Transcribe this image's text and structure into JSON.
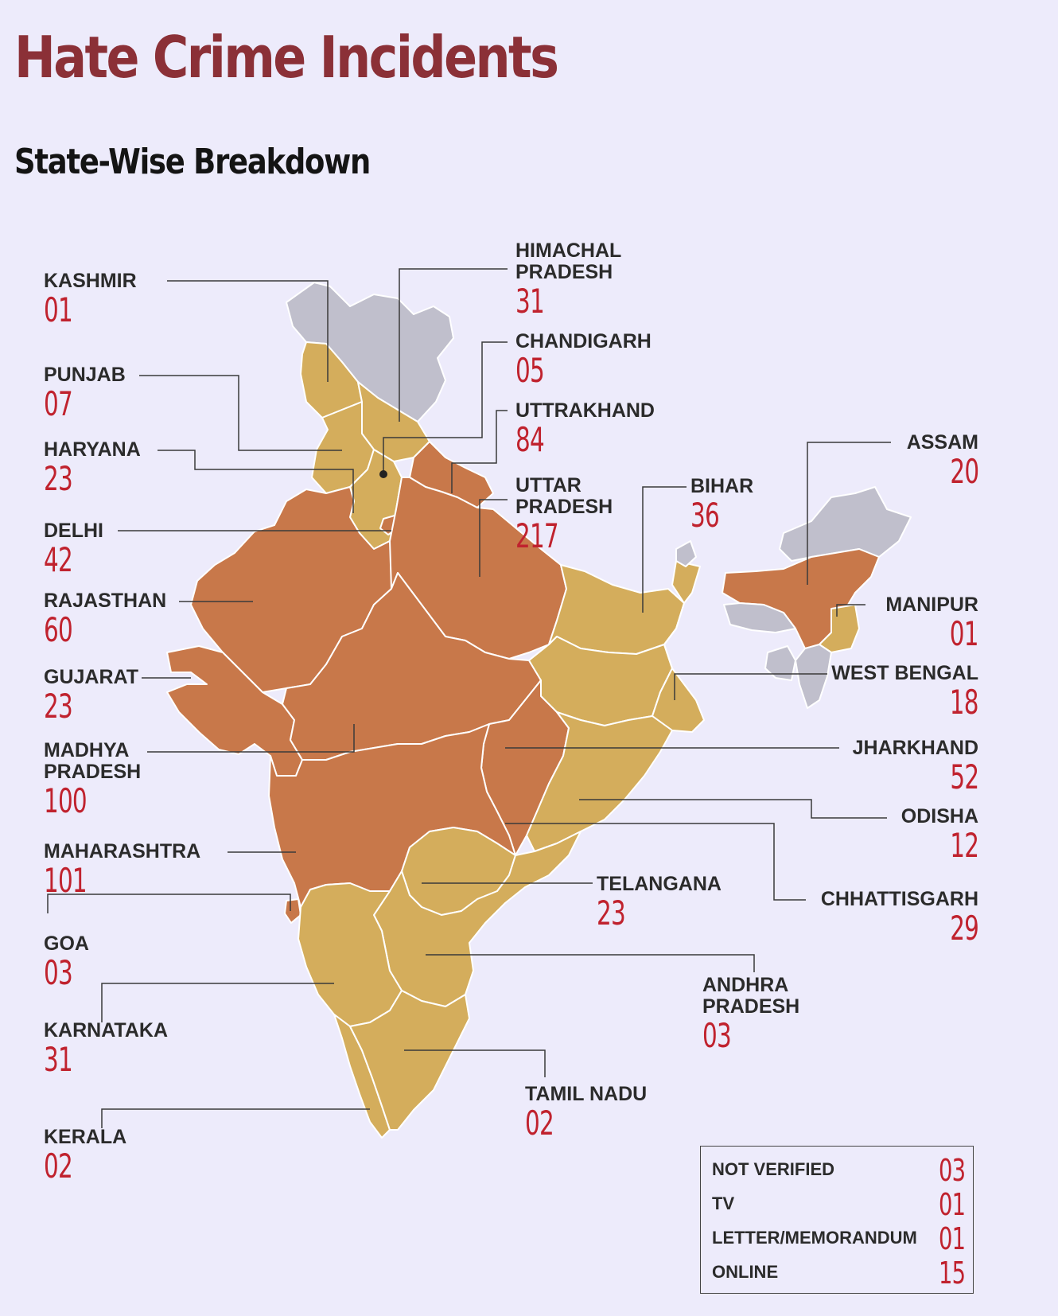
{
  "header": {
    "title": "Hate Crime Incidents",
    "subtitle": "State-Wise Breakdown"
  },
  "colors": {
    "background": "#edebfb",
    "high": "#c8784a",
    "low": "#d4ad5c",
    "none": "#c0bfcc",
    "value": "#c0222e",
    "title": "#8b3037"
  },
  "states": {
    "kashmir": {
      "name": "KASHMIR",
      "value": "01"
    },
    "punjab": {
      "name": "PUNJAB",
      "value": "07"
    },
    "haryana": {
      "name": "HARYANA",
      "value": "23"
    },
    "delhi": {
      "name": "DELHI",
      "value": "42"
    },
    "rajasthan": {
      "name": "RAJASTHAN",
      "value": "60"
    },
    "gujarat": {
      "name": "GUJARAT",
      "value": "23"
    },
    "madhya_pradesh": {
      "name": "MADHYA\nPRADESH",
      "value": "100"
    },
    "maharashtra": {
      "name": "MAHARASHTRA",
      "value": "101"
    },
    "goa": {
      "name": "GOA",
      "value": "03"
    },
    "karnataka": {
      "name": "KARNATAKA",
      "value": "31"
    },
    "kerala": {
      "name": "KERALA",
      "value": "02"
    },
    "himachal_pradesh": {
      "name": "HIMACHAL\nPRADESH",
      "value": "31"
    },
    "chandigarh": {
      "name": "CHANDIGARH",
      "value": "05"
    },
    "uttrakhand": {
      "name": "UTTRAKHAND",
      "value": "84"
    },
    "uttar_pradesh": {
      "name": "UTTAR\nPRADESH",
      "value": "217"
    },
    "bihar": {
      "name": "BIHAR",
      "value": "36"
    },
    "assam": {
      "name": "ASSAM",
      "value": "20"
    },
    "manipur": {
      "name": "MANIPUR",
      "value": "01"
    },
    "west_bengal": {
      "name": "WEST BENGAL",
      "value": "18"
    },
    "jharkhand": {
      "name": "JHARKHAND",
      "value": "52"
    },
    "odisha": {
      "name": "ODISHA",
      "value": "12"
    },
    "chhattisgarh": {
      "name": "CHHATTISGARH",
      "value": "29"
    },
    "telangana": {
      "name": "TELANGANA",
      "value": "23"
    },
    "andhra_pradesh": {
      "name": "ANDHRA\nPRADESH",
      "value": "03"
    },
    "tamil_nadu": {
      "name": "TAMIL NADU",
      "value": "02"
    }
  },
  "legend": [
    {
      "label": "NOT VERIFIED",
      "value": "03"
    },
    {
      "label": "TV",
      "value": "01"
    },
    {
      "label": "LETTER/MEMORANDUM",
      "value": "01"
    },
    {
      "label": "ONLINE",
      "value": "15"
    }
  ]
}
